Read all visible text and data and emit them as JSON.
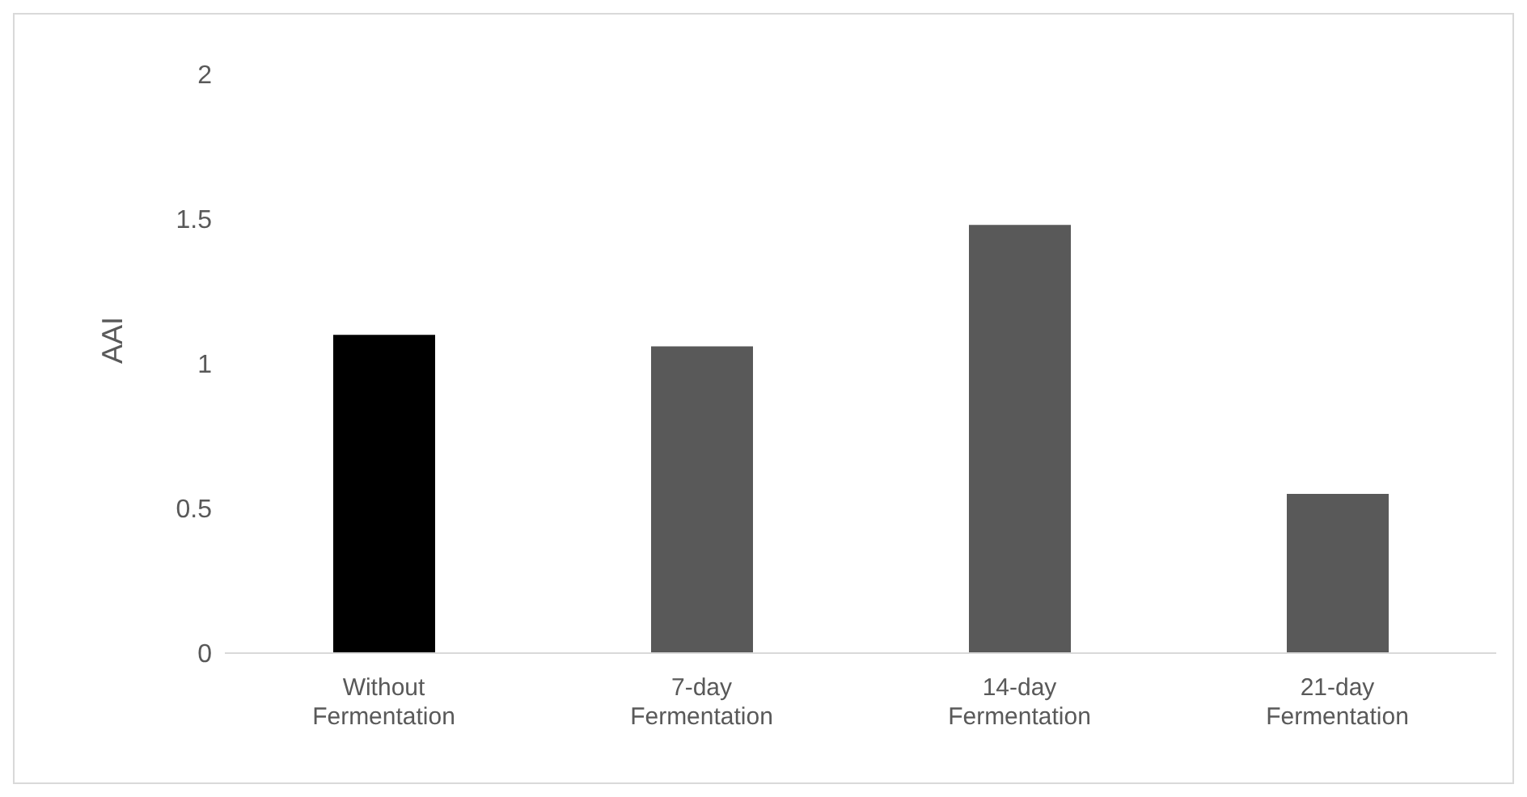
{
  "chart_data": {
    "type": "bar",
    "ylabel": "AAI",
    "categories": [
      "Without Fermentation",
      "7-day Fermentation",
      "14-day Fermentation",
      "21-day Fermentation"
    ],
    "values": [
      1.1,
      1.06,
      1.48,
      0.55
    ],
    "colors": [
      "#000000",
      "#595959",
      "#595959",
      "#595959"
    ],
    "ylim": [
      0,
      2
    ],
    "yticks": [
      0,
      0.5,
      1,
      1.5,
      2
    ],
    "grid": false
  }
}
